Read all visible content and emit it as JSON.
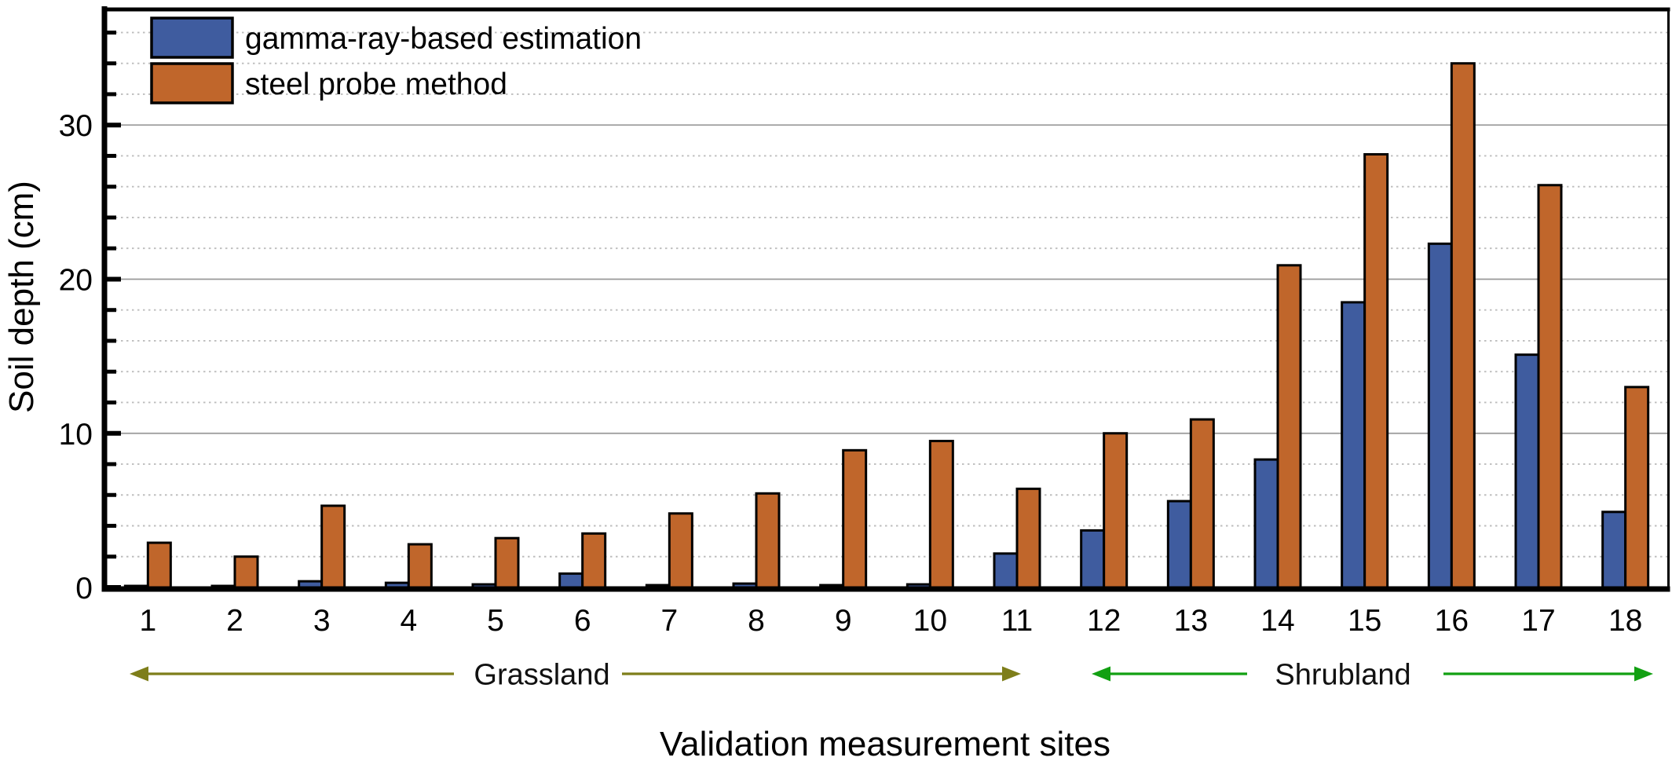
{
  "chart_data": {
    "type": "bar",
    "title": "",
    "xlabel": "Validation measurement sites",
    "ylabel": "Soil depth (cm)",
    "categories": [
      "1",
      "2",
      "3",
      "4",
      "5",
      "6",
      "7",
      "8",
      "9",
      "10",
      "11",
      "12",
      "13",
      "14",
      "15",
      "16",
      "17",
      "18"
    ],
    "series": [
      {
        "name": "gamma-ray-based estimation",
        "color": "#3F5C9F",
        "values": [
          0.1,
          0.1,
          0.4,
          0.3,
          0.2,
          0.9,
          0.15,
          0.25,
          0.15,
          0.2,
          2.2,
          3.7,
          5.6,
          8.3,
          18.5,
          22.3,
          15.1,
          4.9
        ]
      },
      {
        "name": "steel probe method",
        "color": "#C0662B",
        "values": [
          2.9,
          2.0,
          5.3,
          2.8,
          3.2,
          3.5,
          4.8,
          6.1,
          8.9,
          9.5,
          6.4,
          10.0,
          10.9,
          20.9,
          28.1,
          34.0,
          26.1,
          13.0
        ]
      }
    ],
    "ylim": [
      0,
      37.5
    ],
    "yticks_major": [
      0,
      10,
      20,
      30
    ],
    "yticks_minor_step": 2,
    "grid": {
      "major": "solid",
      "minor": "dotted",
      "major_color": "#999999",
      "minor_color": "#bdbdbd"
    },
    "bar_outline_color": "#000000",
    "legend_position": "top-left",
    "annotations": [
      {
        "label": "Grassland",
        "color": "#7E7E1A",
        "sites": "1-11"
      },
      {
        "label": "Shrubland",
        "color": "#12A012",
        "sites": "12-18"
      }
    ]
  }
}
